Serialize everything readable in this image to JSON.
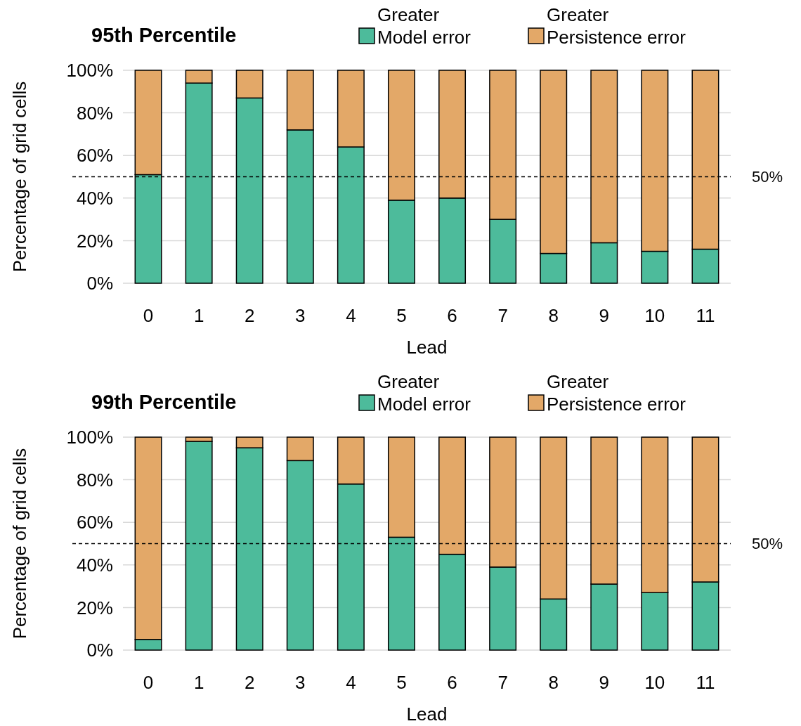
{
  "chart_data": [
    {
      "type": "bar",
      "stacked": true,
      "title": "95th Percentile",
      "xlabel": "Lead",
      "ylabel": "Percentage of grid cells",
      "categories": [
        "0",
        "1",
        "2",
        "3",
        "4",
        "5",
        "6",
        "7",
        "8",
        "9",
        "10",
        "11"
      ],
      "series": [
        {
          "name": "Greater Model error",
          "color": "#4dbb9b",
          "values": [
            51,
            94,
            87,
            72,
            64,
            39,
            40,
            30,
            14,
            19,
            15,
            16
          ]
        },
        {
          "name": "Greater Persistence error",
          "color": "#e3a868",
          "values": [
            49,
            6,
            13,
            28,
            36,
            61,
            60,
            70,
            86,
            81,
            85,
            84
          ]
        }
      ],
      "ylim": [
        0,
        100
      ],
      "yticks": [
        {
          "value": 0,
          "label": "0%"
        },
        {
          "value": 20,
          "label": "20%"
        },
        {
          "value": 40,
          "label": "40%"
        },
        {
          "value": 60,
          "label": "60%"
        },
        {
          "value": 80,
          "label": "80%"
        },
        {
          "value": 100,
          "label": "100%"
        }
      ],
      "grid": "y",
      "legend": "top right",
      "ref_lines": [
        {
          "axis": "y",
          "value": 50,
          "label": "50%",
          "color": "#000000",
          "line_style": "dashed"
        }
      ]
    },
    {
      "type": "bar",
      "stacked": true,
      "title": "99th Percentile",
      "xlabel": "Lead",
      "ylabel": "Percentage of grid cells",
      "categories": [
        "0",
        "1",
        "2",
        "3",
        "4",
        "5",
        "6",
        "7",
        "8",
        "9",
        "10",
        "11"
      ],
      "series": [
        {
          "name": "Greater Model error",
          "color": "#4dbb9b",
          "values": [
            5,
            98,
            95,
            89,
            78,
            53,
            45,
            39,
            24,
            31,
            27,
            32
          ]
        },
        {
          "name": "Greater Persistence error",
          "color": "#e3a868",
          "values": [
            95,
            2,
            5,
            11,
            22,
            47,
            55,
            61,
            76,
            69,
            73,
            68
          ]
        }
      ],
      "ylim": [
        0,
        100
      ],
      "yticks": [
        {
          "value": 0,
          "label": "0%"
        },
        {
          "value": 20,
          "label": "20%"
        },
        {
          "value": 40,
          "label": "40%"
        },
        {
          "value": 60,
          "label": "60%"
        },
        {
          "value": 80,
          "label": "80%"
        },
        {
          "value": 100,
          "label": "100%"
        }
      ],
      "grid": "y",
      "legend": "top right",
      "ref_lines": [
        {
          "axis": "y",
          "value": 50,
          "label": "50%",
          "color": "#000000",
          "line_style": "dashed"
        }
      ]
    }
  ]
}
